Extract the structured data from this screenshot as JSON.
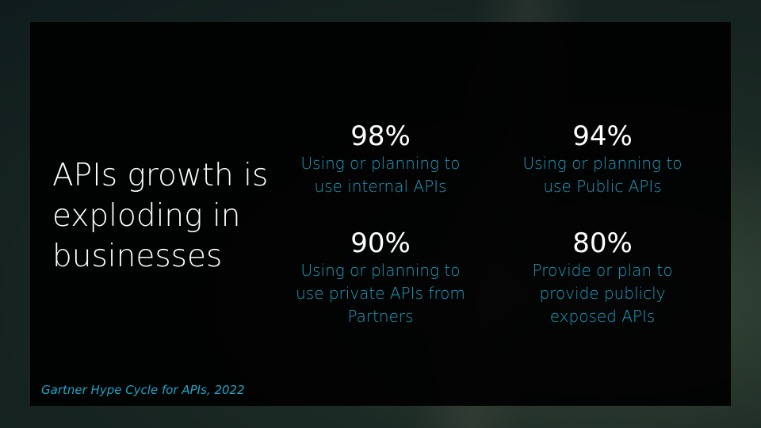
{
  "slide": {
    "title": "APIs growth is exploding in businesses",
    "stats": [
      {
        "value": "98%",
        "description": "Using or planning to use internal APIs"
      },
      {
        "value": "94%",
        "description": "Using or planning to use Public APIs"
      },
      {
        "value": "90%",
        "description": "Using or planning to use private APIs from Partners"
      },
      {
        "value": "80%",
        "description": "Provide or plan to provide publicly exposed APIs"
      }
    ],
    "source": "Gartner Hype Cycle for APIs, 2022"
  },
  "colors": {
    "accent": "#1a9fc2",
    "panel": "#000000"
  }
}
